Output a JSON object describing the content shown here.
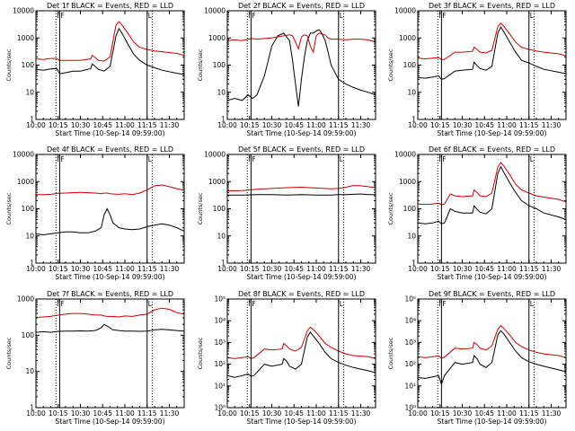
{
  "x_ticks": [
    "10:00",
    "10:15",
    "10:30",
    "10:45",
    "11:00",
    "11:15",
    "11:30"
  ],
  "xlabel": "Start Time (10-Sep-14 09:59:00)",
  "ylabel": "Counts/sec",
  "series_names": [
    "Events",
    "LLD"
  ],
  "colors": {
    "events": "#000000",
    "lld": "#cc0000",
    "axes": "#000000"
  },
  "chart_data": [
    {
      "type": "line",
      "title": "Det 1f BLACK = Events, RED = LLD",
      "ylog": true,
      "ylim": [
        1,
        10000
      ],
      "yticks": [
        "1",
        "10",
        "100",
        "1000",
        "10000"
      ],
      "xlim_min": [
        0,
        100
      ],
      "x_minutes": [
        0,
        5,
        10,
        14,
        16,
        18,
        25,
        30,
        37,
        38,
        40,
        42,
        46,
        50,
        54,
        56,
        58,
        62,
        66,
        70,
        75,
        80,
        85,
        95,
        100
      ],
      "series": [
        {
          "name": "Events",
          "values": [
            70,
            65,
            72,
            75,
            48,
            50,
            60,
            60,
            75,
            110,
            90,
            70,
            60,
            90,
            1200,
            2200,
            1500,
            600,
            250,
            150,
            100,
            80,
            65,
            50,
            45
          ]
        },
        {
          "name": "LLD",
          "values": [
            170,
            160,
            175,
            175,
            150,
            150,
            150,
            150,
            170,
            230,
            190,
            150,
            140,
            200,
            3000,
            4000,
            3000,
            1500,
            700,
            450,
            380,
            330,
            310,
            270,
            230
          ]
        }
      ],
      "markers": {
        "dotted": [
          13.5,
          78.5
        ],
        "solid": [
          16,
          75
        ],
        "labels": {
          "I": 13.5,
          "F": 16,
          "L": 75
        }
      }
    },
    {
      "type": "line",
      "title": "Det 2f BLACK = Events, RED = LLD",
      "ylog": true,
      "ylim": [
        1,
        10000
      ],
      "yticks": [
        "1",
        "10",
        "100",
        "1000",
        "10000"
      ],
      "xlim_min": [
        0,
        100
      ],
      "x_minutes": [
        0,
        5,
        10,
        14,
        17,
        20,
        25,
        30,
        34,
        38,
        42,
        44,
        46,
        48,
        50,
        52,
        54,
        56,
        58,
        60,
        62,
        64,
        66,
        68,
        70,
        75,
        80,
        85,
        90,
        95,
        100
      ],
      "series": [
        {
          "name": "Events",
          "values": [
            5,
            6,
            5,
            8,
            6,
            8,
            40,
            500,
            1200,
            1500,
            800,
            150,
            20,
            3,
            30,
            200,
            800,
            1500,
            1500,
            1800,
            2000,
            1400,
            800,
            300,
            100,
            30,
            20,
            15,
            12,
            10,
            8
          ]
        },
        {
          "name": "LLD",
          "values": [
            800,
            850,
            800,
            900,
            950,
            900,
            950,
            1000,
            1100,
            1200,
            1300,
            1200,
            700,
            400,
            1100,
            1300,
            1200,
            500,
            300,
            1200,
            1500,
            1400,
            1300,
            1000,
            900,
            900,
            850,
            900,
            900,
            850,
            700
          ]
        }
      ],
      "markers": {
        "dotted": [
          13.5,
          78.5
        ],
        "solid": [
          16,
          75
        ],
        "labels": {
          "I": 13.5,
          "F": 16,
          "L": 75
        }
      }
    },
    {
      "type": "line",
      "title": "Det 3f BLACK = Events, RED = LLD",
      "ylog": true,
      "ylim": [
        1,
        10000
      ],
      "yticks": [
        "1",
        "10",
        "100",
        "1000",
        "10000"
      ],
      "xlim_min": [
        0,
        100
      ],
      "x_minutes": [
        0,
        5,
        10,
        14,
        16,
        18,
        25,
        30,
        37,
        38,
        40,
        42,
        46,
        50,
        54,
        56,
        58,
        62,
        66,
        70,
        75,
        80,
        85,
        95,
        100
      ],
      "series": [
        {
          "name": "Events",
          "values": [
            35,
            33,
            36,
            40,
            30,
            32,
            60,
            65,
            70,
            130,
            95,
            75,
            65,
            90,
            1500,
            2500,
            1700,
            700,
            300,
            150,
            120,
            90,
            70,
            55,
            48
          ]
        },
        {
          "name": "LLD",
          "values": [
            180,
            170,
            180,
            190,
            160,
            160,
            300,
            300,
            320,
            450,
            380,
            300,
            280,
            350,
            2600,
            3500,
            2700,
            1400,
            700,
            450,
            380,
            330,
            300,
            260,
            220
          ]
        }
      ],
      "markers": {
        "dotted": [
          13.5,
          78.5
        ],
        "solid": [
          16,
          75
        ],
        "labels": {
          "I": 13.5,
          "F": 16,
          "L": 75
        }
      }
    },
    {
      "type": "line",
      "title": "Det 4f BLACK = Events, RED = LLD",
      "ylog": true,
      "ylim": [
        1,
        10000
      ],
      "yticks": [
        "1",
        "10",
        "100",
        "1000",
        "10000"
      ],
      "xlim_min": [
        0,
        100
      ],
      "x_minutes": [
        0,
        5,
        10,
        15,
        20,
        25,
        30,
        35,
        40,
        44,
        46,
        48,
        50,
        52,
        56,
        60,
        65,
        70,
        75,
        80,
        85,
        90,
        95,
        100
      ],
      "series": [
        {
          "name": "Events",
          "values": [
            12,
            11,
            12,
            13,
            14,
            14,
            13,
            13,
            15,
            20,
            60,
            100,
            60,
            30,
            20,
            18,
            17,
            18,
            22,
            25,
            28,
            25,
            20,
            15
          ]
        },
        {
          "name": "LLD",
          "values": [
            330,
            330,
            340,
            370,
            380,
            390,
            400,
            390,
            380,
            360,
            380,
            380,
            360,
            350,
            340,
            360,
            330,
            380,
            500,
            700,
            750,
            650,
            550,
            480
          ]
        }
      ],
      "markers": {
        "dotted": [
          13.5,
          78.5
        ],
        "solid": [
          16,
          75
        ],
        "labels": {
          "I": 13.5,
          "F": 16,
          "L": 75
        }
      }
    },
    {
      "type": "line",
      "title": "Det 5f BLACK = Events, RED = LLD",
      "ylog": true,
      "ylim": [
        1,
        10000
      ],
      "yticks": [
        "1",
        "10",
        "100",
        "1000",
        "10000"
      ],
      "xlim_min": [
        0,
        100
      ],
      "x_minutes": [
        0,
        10,
        20,
        30,
        40,
        50,
        60,
        70,
        75,
        80,
        85,
        90,
        95,
        100
      ],
      "series": [
        {
          "name": "Events",
          "values": [
            320,
            320,
            330,
            330,
            320,
            330,
            320,
            320,
            330,
            330,
            340,
            350,
            330,
            330
          ]
        },
        {
          "name": "LLD",
          "values": [
            450,
            470,
            520,
            560,
            600,
            620,
            580,
            540,
            560,
            620,
            720,
            700,
            650,
            600
          ]
        }
      ],
      "markers": {
        "dotted": [
          13.5,
          78.5
        ],
        "solid": [
          16,
          75
        ],
        "labels": {
          "I": 13.5,
          "F": 16,
          "L": 75
        }
      }
    },
    {
      "type": "line",
      "title": "Det 6f BLACK = Events, RED = LLD",
      "ylog": true,
      "ylim": [
        1,
        10000
      ],
      "yticks": [
        "1",
        "10",
        "100",
        "1000",
        "10000"
      ],
      "xlim_min": [
        0,
        100
      ],
      "x_minutes": [
        0,
        5,
        10,
        14,
        16,
        18,
        22,
        25,
        30,
        37,
        38,
        40,
        42,
        46,
        50,
        54,
        56,
        58,
        62,
        66,
        70,
        75,
        80,
        85,
        95,
        100
      ],
      "series": [
        {
          "name": "Events",
          "values": [
            30,
            28,
            30,
            35,
            28,
            30,
            100,
            80,
            70,
            70,
            130,
            95,
            75,
            65,
            100,
            2000,
            3500,
            2200,
            900,
            400,
            200,
            130,
            100,
            70,
            50,
            40
          ]
        },
        {
          "name": "LLD",
          "values": [
            150,
            145,
            150,
            160,
            140,
            150,
            350,
            300,
            280,
            300,
            500,
            400,
            300,
            280,
            380,
            3500,
            5000,
            3800,
            1800,
            800,
            500,
            380,
            300,
            270,
            220,
            180
          ]
        }
      ],
      "markers": {
        "dotted": [
          13.5,
          78.5
        ],
        "solid": [
          16,
          75
        ],
        "labels": {
          "I": 13.5,
          "F": 16,
          "L": 75
        }
      }
    },
    {
      "type": "line",
      "title": "Det 7f BLACK = Events, RED = LLD",
      "ylog": true,
      "ylim": [
        1,
        1000
      ],
      "yticks": [
        "1",
        "10",
        "100",
        "1000"
      ],
      "xlim_min": [
        0,
        100
      ],
      "x_minutes": [
        0,
        5,
        10,
        15,
        20,
        25,
        30,
        35,
        40,
        44,
        46,
        48,
        52,
        56,
        60,
        65,
        70,
        75,
        80,
        85,
        90,
        95,
        100
      ],
      "series": [
        {
          "name": "Events",
          "values": [
            120,
            125,
            120,
            128,
            130,
            130,
            132,
            130,
            135,
            160,
            200,
            180,
            140,
            135,
            130,
            130,
            128,
            130,
            140,
            145,
            140,
            135,
            130
          ]
        },
        {
          "name": "LLD",
          "values": [
            310,
            320,
            330,
            360,
            380,
            400,
            400,
            380,
            360,
            360,
            340,
            330,
            330,
            320,
            340,
            330,
            360,
            380,
            500,
            560,
            520,
            420,
            380
          ]
        }
      ],
      "markers": {
        "dotted": [
          13.5,
          78.5
        ],
        "solid": [
          16,
          75
        ],
        "labels": {
          "I": 13.5,
          "F": 16,
          "L": 75
        }
      }
    },
    {
      "type": "line",
      "title": "Det 8f BLACK = Events, RED = LLD",
      "ylog": true,
      "ylim": [
        1,
        100000
      ],
      "yticks": [
        "10⁰",
        "10¹",
        "10²",
        "10³",
        "10⁴",
        "10⁵"
      ],
      "xlim_min": [
        0,
        100
      ],
      "x_minutes": [
        0,
        5,
        10,
        14,
        16,
        18,
        25,
        30,
        37,
        38,
        40,
        42,
        46,
        50,
        54,
        56,
        58,
        62,
        66,
        70,
        75,
        80,
        85,
        95,
        100
      ],
      "series": [
        {
          "name": "Events",
          "values": [
            30,
            25,
            30,
            35,
            28,
            30,
            100,
            80,
            100,
            180,
            140,
            80,
            60,
            100,
            1800,
            3000,
            2000,
            900,
            350,
            180,
            120,
            90,
            70,
            50,
            40
          ]
        },
        {
          "name": "LLD",
          "values": [
            200,
            180,
            200,
            220,
            180,
            200,
            500,
            450,
            500,
            900,
            700,
            500,
            400,
            600,
            3500,
            5000,
            4000,
            2000,
            900,
            600,
            400,
            300,
            250,
            220,
            180
          ]
        }
      ],
      "markers": {
        "dotted": [
          13.5,
          78.5
        ],
        "solid": [
          16,
          75
        ],
        "labels": {
          "I": 13.5,
          "F": 16,
          "L": 75
        }
      }
    },
    {
      "type": "line",
      "title": "Det 9f BLACK = Events, RED = LLD",
      "ylog": true,
      "ylim": [
        1,
        100000
      ],
      "yticks": [
        "10⁰",
        "10¹",
        "10²",
        "10³",
        "10⁴",
        "10⁵"
      ],
      "xlim_min": [
        0,
        100
      ],
      "x_minutes": [
        0,
        5,
        10,
        14,
        16,
        18,
        25,
        30,
        37,
        38,
        40,
        42,
        46,
        50,
        54,
        56,
        58,
        62,
        66,
        70,
        75,
        80,
        85,
        95,
        100
      ],
      "series": [
        {
          "name": "Events",
          "values": [
            25,
            22,
            26,
            30,
            12,
            30,
            120,
            100,
            120,
            250,
            180,
            100,
            70,
            120,
            2200,
            3500,
            2500,
            1000,
            400,
            200,
            130,
            100,
            80,
            55,
            45
          ]
        },
        {
          "name": "LLD",
          "values": [
            220,
            200,
            220,
            240,
            190,
            210,
            550,
            500,
            550,
            1000,
            800,
            550,
            450,
            700,
            4000,
            6000,
            4500,
            2200,
            1000,
            650,
            450,
            350,
            300,
            250,
            200
          ]
        }
      ],
      "markers": {
        "dotted": [
          13.5,
          78.5
        ],
        "solid": [
          16,
          75
        ],
        "labels": {
          "I": 13.5,
          "F": 16,
          "L": 75
        }
      }
    }
  ]
}
